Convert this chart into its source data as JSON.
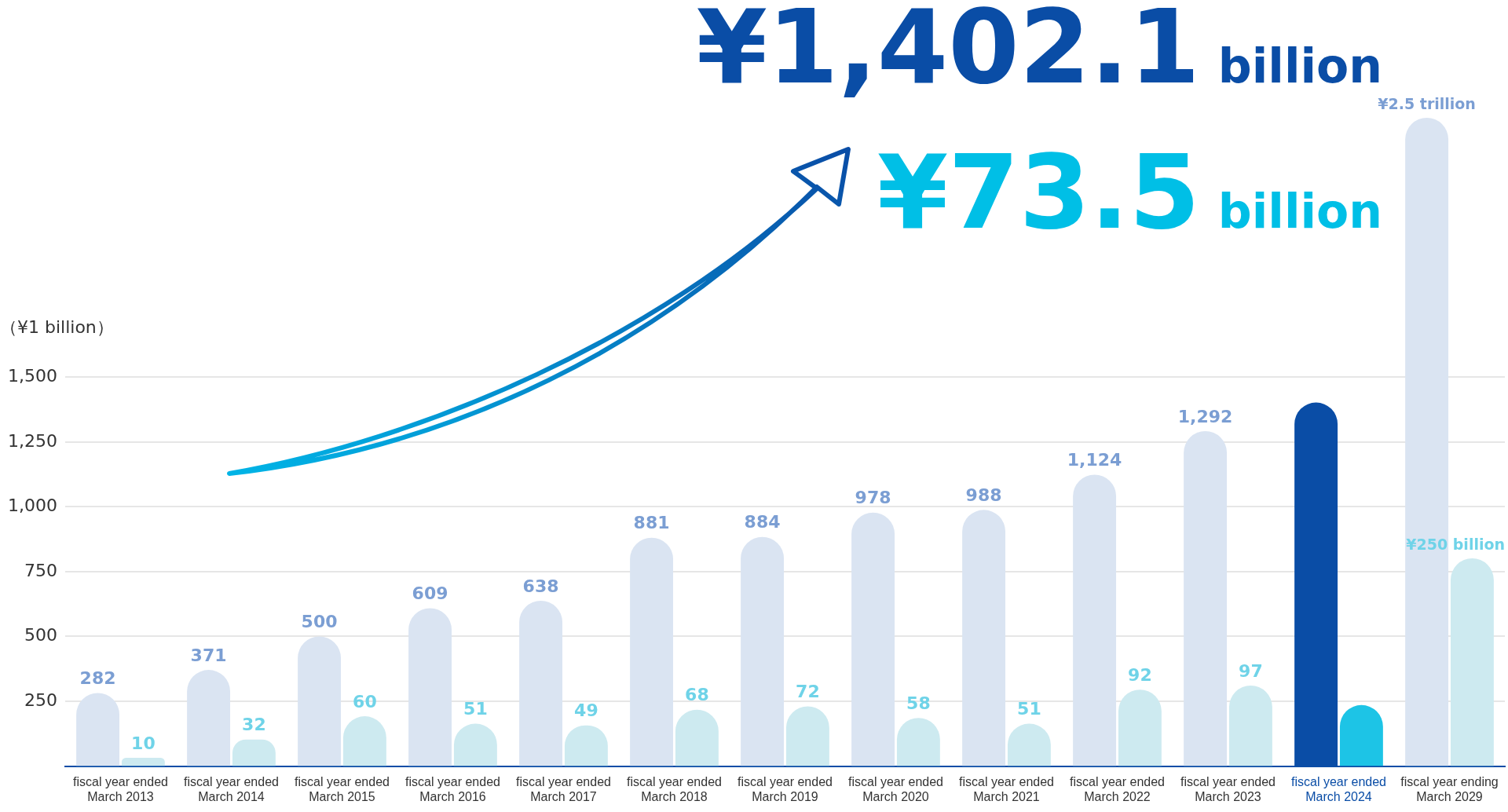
{
  "chart_data": {
    "type": "bar",
    "ylabel": "（¥1 billion）",
    "categories": [
      "fiscal year ended March 2013",
      "fiscal year ended March 2014",
      "fiscal year ended March 2015",
      "fiscal year ended March 2016",
      "fiscal year ended March 2017",
      "fiscal year ended March 2018",
      "fiscal year ended March 2019",
      "fiscal year ended March 2020",
      "fiscal year ended March 2021",
      "fiscal year ended March 2022",
      "fiscal year ended March 2023",
      "fiscal year ended March 2024",
      "fiscal year ending March 2029"
    ],
    "series": [
      {
        "colors": [
          "#dae4f2",
          "#dae4f2",
          "#dae4f2",
          "#dae4f2",
          "#dae4f2",
          "#dae4f2",
          "#dae4f2",
          "#dae4f2",
          "#dae4f2",
          "#dae4f2",
          "#dae4f2",
          "#0a4da6",
          "#dae4f2"
        ],
        "values": [
          282,
          371,
          500,
          609,
          638,
          881,
          884,
          978,
          988,
          1124,
          1292,
          1402.1,
          2500
        ],
        "value_labels": [
          "282",
          "371",
          "500",
          "609",
          "638",
          "881",
          "884",
          "978",
          "988",
          "1,124",
          "1,292",
          null,
          null
        ]
      },
      {
        "axis": "y2",
        "colors": [
          "#cdeaf0",
          "#cdeaf0",
          "#cdeaf0",
          "#cdeaf0",
          "#cdeaf0",
          "#cdeaf0",
          "#cdeaf0",
          "#cdeaf0",
          "#cdeaf0",
          "#cdeaf0",
          "#cdeaf0",
          "#1dc4e6",
          "#cdeaf0"
        ],
        "values": [
          10,
          32,
          60,
          51,
          49,
          68,
          72,
          58,
          51,
          92,
          97,
          73.5,
          250
        ],
        "value_labels": [
          "10",
          "32",
          "60",
          "51",
          "49",
          "68",
          "72",
          "58",
          "51",
          "92",
          "97",
          null,
          "¥250 billion"
        ]
      }
    ],
    "ylim": [
      0,
      2500
    ],
    "yticks": [
      250,
      500,
      750,
      {
        "value": 1000,
        "label": "1,000"
      },
      {
        "value": 1250,
        "label": "1,250"
      },
      {
        "value": 1500,
        "label": "1,500"
      }
    ],
    "y2lim": [
      0,
      780
    ],
    "grid": "y",
    "legend": false,
    "annotations": [
      "¥1,402.1 billion",
      "¥73.5 billion",
      "¥2.5 trillion"
    ]
  }
}
